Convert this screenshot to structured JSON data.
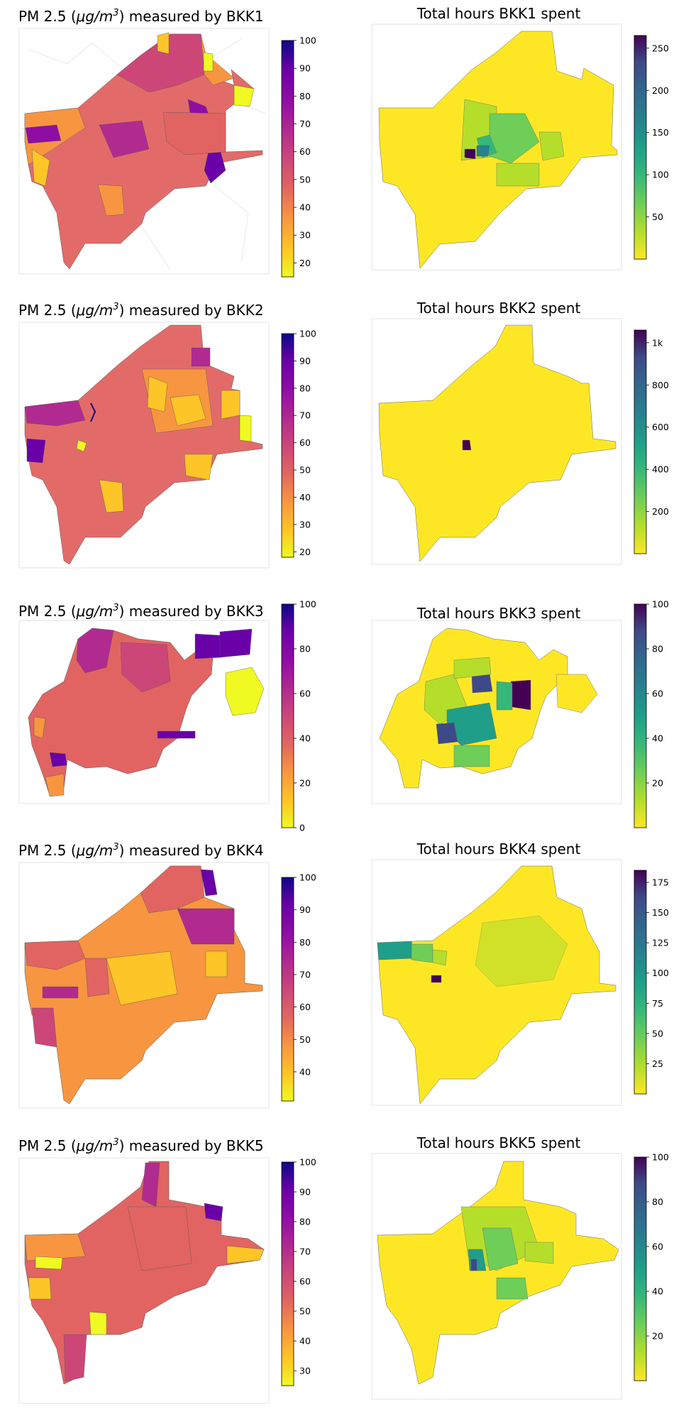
{
  "figure": {
    "rows": [
      {
        "pm": {
          "title_pre": "PM 2.5 (",
          "title_unit": "μg/m",
          "title_exp": "3",
          "title_post": ") measured by BKK1",
          "colormap": "plasma",
          "range": [
            15,
            100
          ],
          "ticks": [
            "100",
            "90",
            "80",
            "70",
            "60",
            "50",
            "40",
            "30",
            "20"
          ]
        },
        "hours": {
          "title": "Total hours BKK1 spent",
          "colormap": "viridis",
          "range": [
            0,
            265
          ],
          "ticks": [
            "250",
            "200",
            "150",
            "100",
            "50"
          ]
        }
      },
      {
        "pm": {
          "title_pre": "PM 2.5 (",
          "title_unit": "μg/m",
          "title_exp": "3",
          "title_post": ") measured by BKK2",
          "colormap": "plasma",
          "range": [
            18,
            100
          ],
          "ticks": [
            "100",
            "90",
            "80",
            "70",
            "60",
            "50",
            "40",
            "30",
            "20"
          ]
        },
        "hours": {
          "title": "Total hours BKK2 spent",
          "colormap": "viridis",
          "range": [
            0,
            1060
          ],
          "ticks": [
            "1k",
            "800",
            "600",
            "400",
            "200"
          ]
        }
      },
      {
        "pm": {
          "title_pre": "PM 2.5 (",
          "title_unit": "μg/m",
          "title_exp": "3",
          "title_post": ") measured by BKK3",
          "colormap": "plasma",
          "range": [
            0,
            100
          ],
          "ticks": [
            "100",
            "80",
            "60",
            "40",
            "20",
            "0"
          ]
        },
        "hours": {
          "title": "Total hours BKK3 spent",
          "colormap": "viridis",
          "range": [
            0,
            100
          ],
          "ticks": [
            "100",
            "80",
            "60",
            "40",
            "20"
          ]
        }
      },
      {
        "pm": {
          "title_pre": "PM 2.5 (",
          "title_unit": "μg/m",
          "title_exp": "3",
          "title_post": ") measured by BKK4",
          "colormap": "plasma",
          "range": [
            31,
            100
          ],
          "ticks": [
            "100",
            "90",
            "80",
            "70",
            "60",
            "50",
            "40"
          ]
        },
        "hours": {
          "title": "Total hours BKK4 spent",
          "colormap": "viridis",
          "range": [
            0,
            185
          ],
          "ticks": [
            "175",
            "150",
            "125",
            "100",
            "75",
            "50",
            "25"
          ]
        }
      },
      {
        "pm": {
          "title_pre": "PM 2.5 (",
          "title_unit": "μg/m",
          "title_exp": "3",
          "title_post": ") measured by BKK5",
          "colormap": "plasma",
          "range": [
            25,
            100
          ],
          "ticks": [
            "100",
            "90",
            "80",
            "70",
            "60",
            "50",
            "40",
            "30"
          ]
        },
        "hours": {
          "title": "Total hours BKK5 spent",
          "colormap": "viridis",
          "range": [
            0,
            100
          ],
          "ticks": [
            "100",
            "80",
            "60",
            "40",
            "20"
          ]
        }
      }
    ]
  }
}
